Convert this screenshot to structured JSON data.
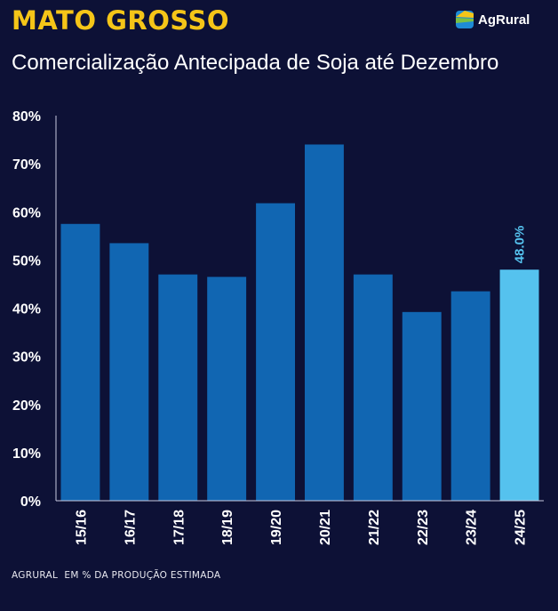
{
  "header": {
    "title": "MATO GROSSO",
    "subtitle": "Comercialização Antecipada de Soja até Dezembro",
    "brand": "AgRural"
  },
  "footer": {
    "note": "AGRURAL  EM % DA PRODUÇÃO ESTIMADA"
  },
  "chart_data": {
    "type": "bar",
    "title": "Comercialização Antecipada de Soja até Dezembro",
    "xlabel": "",
    "ylabel": "",
    "categories": [
      "15/16",
      "16/17",
      "17/18",
      "18/19",
      "19/20",
      "20/21",
      "21/22",
      "22/23",
      "23/24",
      "24/25"
    ],
    "values": [
      57.5,
      53.5,
      47.0,
      46.5,
      61.8,
      74.0,
      47.0,
      39.2,
      43.5,
      48.0
    ],
    "value_labels": [
      "",
      "",
      "",
      "",
      "",
      "",
      "",
      "",
      "",
      "48.0%"
    ],
    "ylim": [
      0,
      80
    ],
    "yticks": [
      "0%",
      "10%",
      "20%",
      "30%",
      "40%",
      "50%",
      "60%",
      "70%",
      "80%"
    ],
    "grid": false,
    "colors": {
      "bar": "#1166b2",
      "highlight": "#55c2ee",
      "highlight_label": "#55c2ee",
      "axis": "#ffffff",
      "background": "#0d1136"
    },
    "highlight_index": 9
  }
}
